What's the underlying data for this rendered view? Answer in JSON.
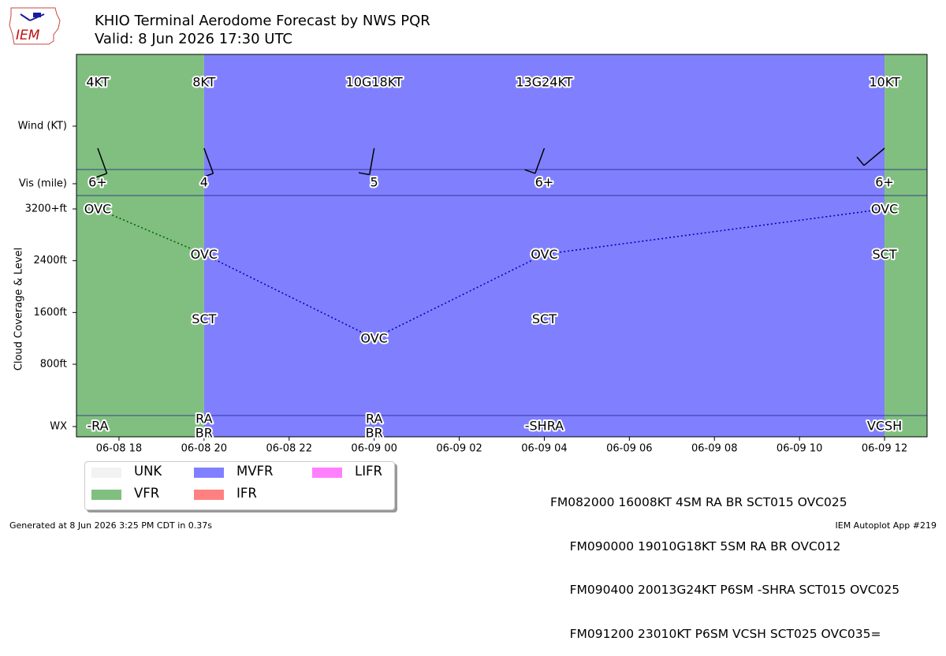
{
  "header": {
    "title": "KHIO Terminal Aerodome Forecast by NWS PQR",
    "subtitle": "Valid: 8 Jun 2026 17:30 UTC",
    "logo_text": "IEM"
  },
  "footer": {
    "generated": "Generated at 8 Jun 2026 3:25 PM CDT in 0.37s",
    "app": "IEM Autoplot App #219"
  },
  "taf_text": [
    "FM082000 16008KT 4SM RA BR SCT015 OVC025",
    "     FM090000 19010G18KT 5SM RA BR OVC012",
    "     FM090400 20013G24KT P6SM -SHRA SCT015 OVC025",
    "     FM091200 23010KT P6SM VCSH SCT025 OVC035="
  ],
  "legend": [
    {
      "label": "UNK",
      "color": "#f2f2f2"
    },
    {
      "label": "VFR",
      "color": "#80bf80"
    },
    {
      "label": "MVFR",
      "color": "#8080ff"
    },
    {
      "label": "IFR",
      "color": "#ff8080"
    },
    {
      "label": "LIFR",
      "color": "#ff80ff"
    }
  ],
  "chart_data": {
    "type": "timeline",
    "title": "KHIO Terminal Aerodome Forecast by NWS PQR",
    "x_start": "2026-06-08T17:00Z",
    "x_end": "2026-06-09T13:00Z",
    "x_tick_labels": [
      "06-08 18",
      "06-08 20",
      "06-08 22",
      "06-09 00",
      "06-09 02",
      "06-09 04",
      "06-09 06",
      "06-09 08",
      "06-09 10",
      "06-09 12"
    ],
    "row_labels": {
      "wind": "Wind (KT)",
      "vis": "Vis (mile)",
      "wx": "WX"
    },
    "ylabel": "Cloud Coverage & Level",
    "y_tick_labels": [
      "3200+ft",
      "2400ft",
      "1600ft",
      "800ft"
    ],
    "y_ticks": [
      3200,
      2400,
      1600,
      800
    ],
    "ylim": [
      -900,
      4100
    ],
    "bands": [
      {
        "start": "2026-06-08T17:00Z",
        "end": "2026-06-08T20:00Z",
        "category": "VFR"
      },
      {
        "start": "2026-06-08T20:00Z",
        "end": "2026-06-09T12:00Z",
        "category": "MVFR"
      },
      {
        "start": "2026-06-09T12:00Z",
        "end": "2026-06-09T13:00Z",
        "category": "VFR"
      }
    ],
    "forecasts": [
      {
        "time": "2026-06-08T17:30Z",
        "wind_dir": 160,
        "wind_text": "4KT",
        "vis": "6+",
        "wx": [
          "-RA"
        ],
        "clouds": [
          {
            "cover": "OVC",
            "level": 3200
          }
        ],
        "top_level": 3200
      },
      {
        "time": "2026-06-08T20:00Z",
        "wind_dir": 160,
        "wind_text": "8KT",
        "vis": "4",
        "wx": [
          "RA",
          "BR"
        ],
        "clouds": [
          {
            "cover": "SCT",
            "level": 1500
          },
          {
            "cover": "OVC",
            "level": 2500
          }
        ],
        "top_level": 2500
      },
      {
        "time": "2026-06-09T00:00Z",
        "wind_dir": 190,
        "wind_text": "10G18KT",
        "vis": "5",
        "wx": [
          "RA",
          "BR"
        ],
        "clouds": [
          {
            "cover": "OVC",
            "level": 1200
          }
        ],
        "top_level": 1200
      },
      {
        "time": "2026-06-09T04:00Z",
        "wind_dir": 200,
        "wind_text": "13G24KT",
        "vis": "6+",
        "wx": [
          "-SHRA"
        ],
        "clouds": [
          {
            "cover": "SCT",
            "level": 1500
          },
          {
            "cover": "OVC",
            "level": 2500
          }
        ],
        "top_level": 2500
      },
      {
        "time": "2026-06-09T12:00Z",
        "wind_dir": 230,
        "wind_text": "10KT",
        "vis": "6+",
        "wx": [
          "VCSH"
        ],
        "clouds": [
          {
            "cover": "SCT",
            "level": 2500
          },
          {
            "cover": "OVC",
            "level": 3200
          }
        ],
        "top_level": 3200
      }
    ]
  }
}
